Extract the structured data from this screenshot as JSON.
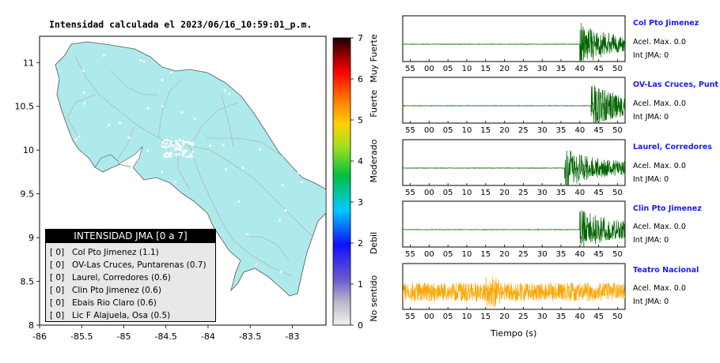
{
  "map": {
    "title": "Intensidad calculada el 2023/06/16_10:59:01_p.m.",
    "x_ticks": [
      "-86",
      "-85.5",
      "-85",
      "-84.5",
      "-84",
      "-83.5",
      "-83"
    ],
    "y_ticks": [
      "8",
      "8.5",
      "9",
      "9.5",
      "10",
      "10.5",
      "11"
    ],
    "colors": {
      "land": "#aeeaec",
      "roads": "#b5b5b5",
      "stations": "#ffffff",
      "border": "#000000"
    }
  },
  "colorbar": {
    "ticks": [
      "0",
      "1",
      "2",
      "3",
      "4",
      "5",
      "6",
      "7"
    ],
    "categories": [
      "No sentido",
      "Debil",
      "Moderado",
      "Fuerte",
      "Muy Fuerte"
    ]
  },
  "legend": {
    "header": "INTENSIDAD JMA [0 a 7]",
    "items": [
      {
        "code": "[ 0]",
        "label": "Col Pto Jimenez (1.1)"
      },
      {
        "code": "[ 0]",
        "label": "OV-Las Cruces, Puntarenas (0.7)"
      },
      {
        "code": "[ 0]",
        "label": "Laurel, Corredores (0.6)"
      },
      {
        "code": "[ 0]",
        "label": "Clin Pto Jimenez (0.6)"
      },
      {
        "code": "[ 0]",
        "label": "Ebais Rio Claro (0.6)"
      },
      {
        "code": "[ 0]",
        "label": "Lic F Alajuela, Osa (0.5)"
      }
    ]
  },
  "traces": [
    {
      "name": "Col Pto Jimenez",
      "acel": "Acel. Max. 0.0",
      "int": "Int JMA: 0",
      "ticks": [
        "55",
        "00",
        "05",
        "10",
        "15",
        "20",
        "25",
        "30",
        "35",
        "40",
        "45",
        "50"
      ],
      "color": "#006400",
      "onset": 40
    },
    {
      "name": "OV-Las Cruces, Puntarenas",
      "acel": "Acel. Max. 0.0",
      "int": "Int JMA: 0",
      "ticks": [
        "55",
        "00",
        "05",
        "10",
        "15",
        "20",
        "25",
        "30",
        "35",
        "40",
        "45",
        "50"
      ],
      "color": "#006400",
      "onset": 43
    },
    {
      "name": "Laurel, Corredores",
      "acel": "Acel. Max. 0.0",
      "int": "Int JMA: 0",
      "ticks": [
        "55",
        "00",
        "05",
        "10",
        "15",
        "20",
        "25",
        "30",
        "35",
        "40",
        "45",
        "50"
      ],
      "color": "#006400",
      "onset": 36
    },
    {
      "name": "Clin Pto Jimenez",
      "acel": "Acel. Max. 0.0",
      "int": "Int JMA: 0",
      "ticks": [
        "55",
        "00",
        "05",
        "10",
        "15",
        "20",
        "25",
        "30",
        "35",
        "40",
        "45",
        "50"
      ],
      "color": "#006400",
      "onset": 40
    },
    {
      "name": "Teatro Nacional",
      "acel": "Acel. Max. 0.0",
      "int": "Int JMA: 0",
      "ticks": [
        "55",
        "00",
        "05",
        "10",
        "15",
        "20",
        "25",
        "30",
        "35",
        "40",
        "45",
        "50"
      ],
      "color": "#ffa500",
      "onset": -7
    }
  ],
  "time_axis_label": "Tiempo (s)",
  "chart_data": [
    {
      "type": "heatmap",
      "title": "Intensidad calculada el 2023/06/16_10:59:01_p.m.",
      "xlim": [
        -86,
        -82.6
      ],
      "ylim": [
        8,
        11.3
      ],
      "colorbar_range": [
        0,
        7
      ],
      "legend": [
        {
          "station": "Col Pto Jimenez",
          "intensity": 1.1
        },
        {
          "station": "OV-Las Cruces, Puntarenas",
          "intensity": 0.7
        },
        {
          "station": "Laurel, Corredores",
          "intensity": 0.6
        },
        {
          "station": "Clin Pto Jimenez",
          "intensity": 0.6
        },
        {
          "station": "Ebais Rio Claro",
          "intensity": 0.6
        },
        {
          "station": "Lic F Alajuela, Osa",
          "intensity": 0.5
        }
      ]
    },
    {
      "type": "line",
      "series": [
        {
          "name": "Col Pto Jimenez",
          "acel_max": 0.0,
          "int_jma": 0
        },
        {
          "name": "OV-Las Cruces, Puntarenas",
          "acel_max": 0.0,
          "int_jma": 0
        },
        {
          "name": "Laurel, Corredores",
          "acel_max": 0.0,
          "int_jma": 0
        },
        {
          "name": "Clin Pto Jimenez",
          "acel_max": 0.0,
          "int_jma": 0
        },
        {
          "name": "Teatro Nacional",
          "acel_max": 0.0,
          "int_jma": 0
        }
      ],
      "xlabel": "Tiempo (s)"
    }
  ]
}
